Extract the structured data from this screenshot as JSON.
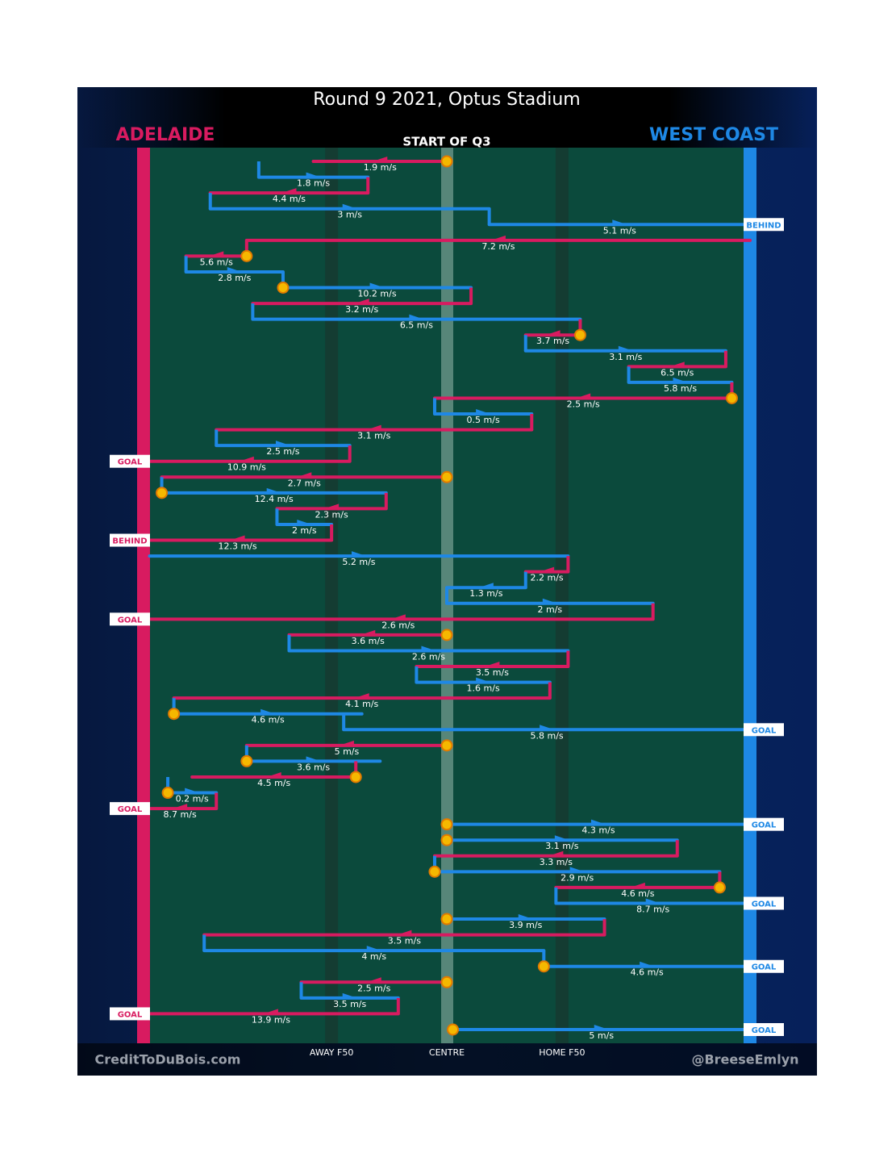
{
  "chart_data": {
    "type": "chain",
    "title": "Round 9 2021, Optus Stadium",
    "subtitle": "START OF Q3",
    "teams": [
      {
        "name": "ADELAIDE",
        "color": "#d81b60"
      },
      {
        "name": "WEST COAST",
        "color": "#1e88e5"
      }
    ],
    "credits": [
      "CreditToDuBois.com",
      "@BreeseEmlyn"
    ],
    "xlim": [
      0,
      100
    ],
    "xticks": [
      {
        "value": 31,
        "label": "AWAY F50"
      },
      {
        "value": 50,
        "label": "CENTRE"
      },
      {
        "value": 69,
        "label": "HOME F50"
      }
    ],
    "segments": [
      {
        "team": 0,
        "x": [
          50,
          28
        ],
        "speed": 1.9,
        "value_label": "1.9 m/s",
        "start_marker": true
      },
      {
        "team": 1,
        "x": [
          19,
          37
        ],
        "speed": 1.8,
        "value_label": "1.8 m/s"
      },
      {
        "team": 0,
        "x": [
          37,
          11
        ],
        "speed": 4.4,
        "value_label": "4.4 m/s"
      },
      {
        "team": 1,
        "x": [
          11,
          57
        ],
        "speed": 3,
        "value_label": "3 m/s"
      },
      {
        "team": 1,
        "x": [
          57,
          100
        ],
        "speed": 5.1,
        "value_label": "5.1 m/s",
        "result": "BEHIND"
      },
      {
        "team": 0,
        "x": [
          100,
          17
        ],
        "speed": 7.2,
        "value_label": "7.2 m/s"
      },
      {
        "team": 0,
        "x": [
          17,
          7
        ],
        "speed": 5.6,
        "value_label": "5.6 m/s",
        "start_marker": true
      },
      {
        "team": 1,
        "x": [
          7,
          23
        ],
        "speed": 2.8,
        "value_label": "2.8 m/s"
      },
      {
        "team": 1,
        "x": [
          23,
          54
        ],
        "speed": 10.2,
        "value_label": "10.2 m/s",
        "start_marker": true
      },
      {
        "team": 0,
        "x": [
          54,
          18
        ],
        "speed": 3.2,
        "value_label": "3.2 m/s"
      },
      {
        "team": 1,
        "x": [
          18,
          72
        ],
        "speed": 6.5,
        "value_label": "6.5 m/s"
      },
      {
        "team": 0,
        "x": [
          72,
          63
        ],
        "speed": 3.7,
        "value_label": "3.7 m/s",
        "start_marker": true
      },
      {
        "team": 1,
        "x": [
          63,
          96
        ],
        "speed": 3.1,
        "value_label": "3.1 m/s"
      },
      {
        "team": 0,
        "x": [
          96,
          80
        ],
        "speed": 6.5,
        "value_label": "6.5 m/s"
      },
      {
        "team": 1,
        "x": [
          80,
          97
        ],
        "speed": 5.8,
        "value_label": "5.8 m/s"
      },
      {
        "team": 0,
        "x": [
          97,
          48
        ],
        "speed": 2.5,
        "value_label": "2.5 m/s",
        "start_marker": true
      },
      {
        "team": 1,
        "x": [
          48,
          64
        ],
        "speed": 0.5,
        "value_label": "0.5 m/s"
      },
      {
        "team": 0,
        "x": [
          64,
          12
        ],
        "speed": 3.1,
        "value_label": "3.1 m/s"
      },
      {
        "team": 1,
        "x": [
          12,
          34
        ],
        "speed": 2.5,
        "value_label": "2.5 m/s"
      },
      {
        "team": 0,
        "x": [
          34,
          0
        ],
        "speed": 10.9,
        "value_label": "10.9 m/s",
        "result": "GOAL"
      },
      {
        "team": 0,
        "x": [
          50,
          3
        ],
        "speed": 2.7,
        "value_label": "2.7 m/s",
        "start_marker": true
      },
      {
        "team": 1,
        "x": [
          3,
          40
        ],
        "speed": 12.4,
        "value_label": "12.4 m/s",
        "start_marker": true
      },
      {
        "team": 0,
        "x": [
          40,
          22
        ],
        "speed": 2.3,
        "value_label": "2.3 m/s"
      },
      {
        "team": 1,
        "x": [
          22,
          31
        ],
        "speed": 2,
        "value_label": "2 m/s"
      },
      {
        "team": 0,
        "x": [
          31,
          0
        ],
        "speed": 12.3,
        "value_label": "12.3 m/s",
        "result": "BEHIND"
      },
      {
        "team": 1,
        "x": [
          1,
          70
        ],
        "speed": 5.2,
        "value_label": "5.2 m/s"
      },
      {
        "team": 0,
        "x": [
          70,
          63
        ],
        "speed": 2.2,
        "value_label": "2.2 m/s"
      },
      {
        "team": 1,
        "x": [
          63,
          50
        ],
        "speed": 1.3,
        "value_label": "1.3 m/s"
      },
      {
        "team": 1,
        "x": [
          50,
          84
        ],
        "speed": 2,
        "value_label": "2 m/s"
      },
      {
        "team": 0,
        "x": [
          84,
          0
        ],
        "speed": 2.6,
        "value_label": "2.6 m/s",
        "result": "GOAL"
      },
      {
        "team": 0,
        "x": [
          50,
          24
        ],
        "speed": 3.6,
        "value_label": "3.6 m/s",
        "start_marker": true
      },
      {
        "team": 1,
        "x": [
          24,
          70
        ],
        "speed": 2.6,
        "value_label": "2.6 m/s"
      },
      {
        "team": 0,
        "x": [
          70,
          45
        ],
        "speed": 3.5,
        "value_label": "3.5 m/s"
      },
      {
        "team": 1,
        "x": [
          45,
          67
        ],
        "speed": 1.6,
        "value_label": "1.6 m/s"
      },
      {
        "team": 0,
        "x": [
          67,
          5
        ],
        "speed": 4.1,
        "value_label": "4.1 m/s"
      },
      {
        "team": 1,
        "x": [
          5,
          36
        ],
        "speed": 4.6,
        "value_label": "4.6 m/s",
        "start_marker": true
      },
      {
        "team": 1,
        "x": [
          33,
          100
        ],
        "speed": 5.8,
        "value_label": "5.8 m/s",
        "result": "GOAL"
      },
      {
        "team": 0,
        "x": [
          50,
          17
        ],
        "speed": 5,
        "value_label": "5 m/s",
        "start_marker": true
      },
      {
        "team": 1,
        "x": [
          17,
          39
        ],
        "speed": 3.6,
        "value_label": "3.6 m/s",
        "start_marker": true
      },
      {
        "team": 0,
        "x": [
          35,
          8
        ],
        "speed": 4.5,
        "value_label": "4.5 m/s",
        "start_marker": true
      },
      {
        "team": 1,
        "x": [
          4,
          12
        ],
        "speed": 0.2,
        "value_label": "0.2 m/s",
        "start_marker": true
      },
      {
        "team": 0,
        "x": [
          12,
          0
        ],
        "speed": 8.7,
        "value_label": "8.7 m/s",
        "result": "GOAL"
      },
      {
        "team": 1,
        "x": [
          50,
          100
        ],
        "speed": 4.3,
        "value_label": "4.3 m/s",
        "start_marker": true,
        "result": "GOAL"
      },
      {
        "team": 1,
        "x": [
          50,
          88
        ],
        "speed": 3.1,
        "value_label": "3.1 m/s",
        "start_marker": true
      },
      {
        "team": 0,
        "x": [
          88,
          48
        ],
        "speed": 3.3,
        "value_label": "3.3 m/s"
      },
      {
        "team": 1,
        "x": [
          48,
          95
        ],
        "speed": 2.9,
        "value_label": "2.9 m/s",
        "start_marker": true
      },
      {
        "team": 0,
        "x": [
          95,
          68
        ],
        "speed": 4.6,
        "value_label": "4.6 m/s",
        "start_marker": true
      },
      {
        "team": 1,
        "x": [
          68,
          100
        ],
        "speed": 8.7,
        "value_label": "8.7 m/s",
        "result": "GOAL"
      },
      {
        "team": 1,
        "x": [
          50,
          76
        ],
        "speed": 3.9,
        "value_label": "3.9 m/s",
        "start_marker": true
      },
      {
        "team": 0,
        "x": [
          76,
          10
        ],
        "speed": 3.5,
        "value_label": "3.5 m/s"
      },
      {
        "team": 1,
        "x": [
          10,
          66
        ],
        "speed": 4,
        "value_label": "4 m/s"
      },
      {
        "team": 1,
        "x": [
          66,
          100
        ],
        "speed": 4.6,
        "value_label": "4.6 m/s",
        "start_marker": true,
        "result": "GOAL"
      },
      {
        "team": 0,
        "x": [
          50,
          26
        ],
        "speed": 2.5,
        "value_label": "2.5 m/s",
        "start_marker": true
      },
      {
        "team": 1,
        "x": [
          26,
          42
        ],
        "speed": 3.5,
        "value_label": "3.5 m/s"
      },
      {
        "team": 0,
        "x": [
          42,
          0
        ],
        "speed": 13.9,
        "value_label": "13.9 m/s",
        "result": "GOAL"
      },
      {
        "team": 1,
        "x": [
          51,
          100
        ],
        "speed": 5,
        "value_label": "5 m/s",
        "start_marker": true,
        "result": "GOAL"
      }
    ]
  }
}
